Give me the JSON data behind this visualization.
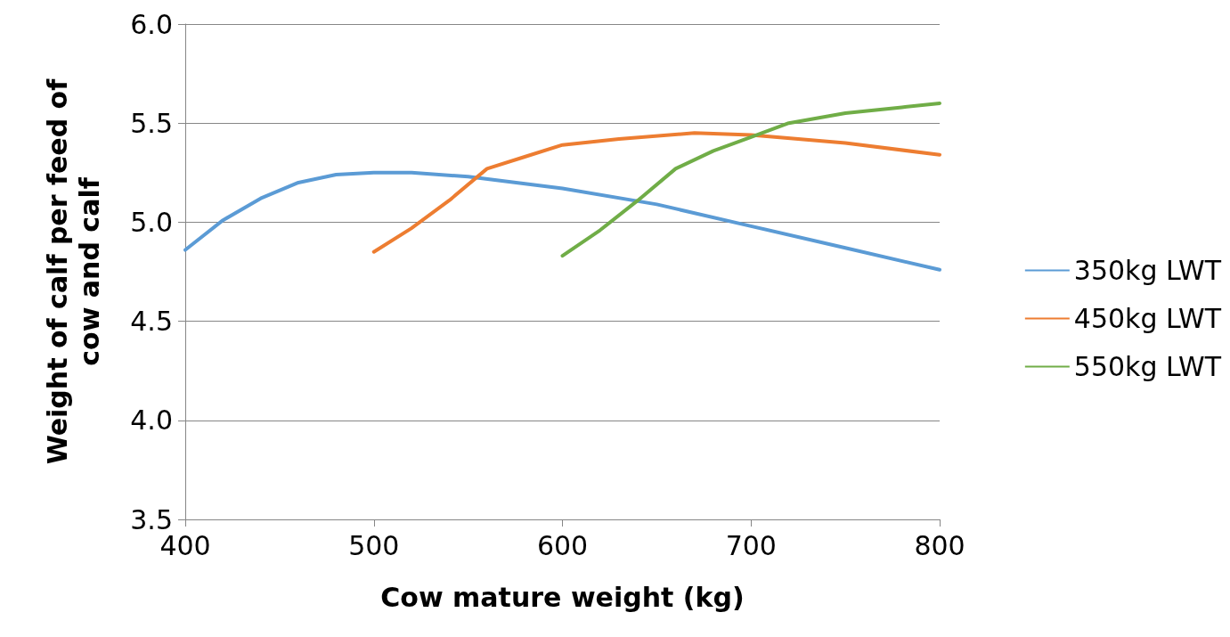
{
  "chart_data": {
    "type": "line",
    "xlabel": "Cow mature weight (kg)",
    "ylabel": "Weight of calf per feed of cow and calf",
    "xlim": [
      400,
      800
    ],
    "xticks": [
      400,
      500,
      600,
      700,
      800
    ],
    "ylim": [
      3.5,
      6.0
    ],
    "yticks": [
      {
        "value": 3.5,
        "label": "3.5"
      },
      {
        "value": 4.0,
        "label": "4.0"
      },
      {
        "value": 4.5,
        "label": "4.5"
      },
      {
        "value": 5.0,
        "label": "5.0"
      },
      {
        "value": 5.5,
        "label": "5.5"
      },
      {
        "value": 6.0,
        "label": "6.0"
      }
    ],
    "grid": "y",
    "legend": "right",
    "marker": "none",
    "line_style": "solid",
    "series": [
      {
        "name": "350kg LWT",
        "color": "#5b9bd5",
        "x": [
          400,
          420,
          440,
          460,
          480,
          500,
          520,
          550,
          600,
          650,
          700,
          750,
          800
        ],
        "values": [
          4.86,
          5.01,
          5.12,
          5.2,
          5.24,
          5.25,
          5.25,
          5.23,
          5.17,
          5.09,
          4.98,
          4.87,
          4.76
        ]
      },
      {
        "name": "450kg LWT",
        "color": "#ed7d31",
        "x": [
          500,
          520,
          540,
          560,
          580,
          600,
          630,
          670,
          700,
          750,
          800
        ],
        "values": [
          4.85,
          4.97,
          5.11,
          5.27,
          5.33,
          5.39,
          5.42,
          5.45,
          5.44,
          5.4,
          5.34
        ]
      },
      {
        "name": "550kg LWT",
        "color": "#70ad47",
        "x": [
          600,
          620,
          640,
          660,
          680,
          700,
          720,
          750,
          780,
          800
        ],
        "values": [
          4.83,
          4.96,
          5.11,
          5.27,
          5.36,
          5.43,
          5.5,
          5.55,
          5.58,
          5.6
        ]
      }
    ]
  }
}
